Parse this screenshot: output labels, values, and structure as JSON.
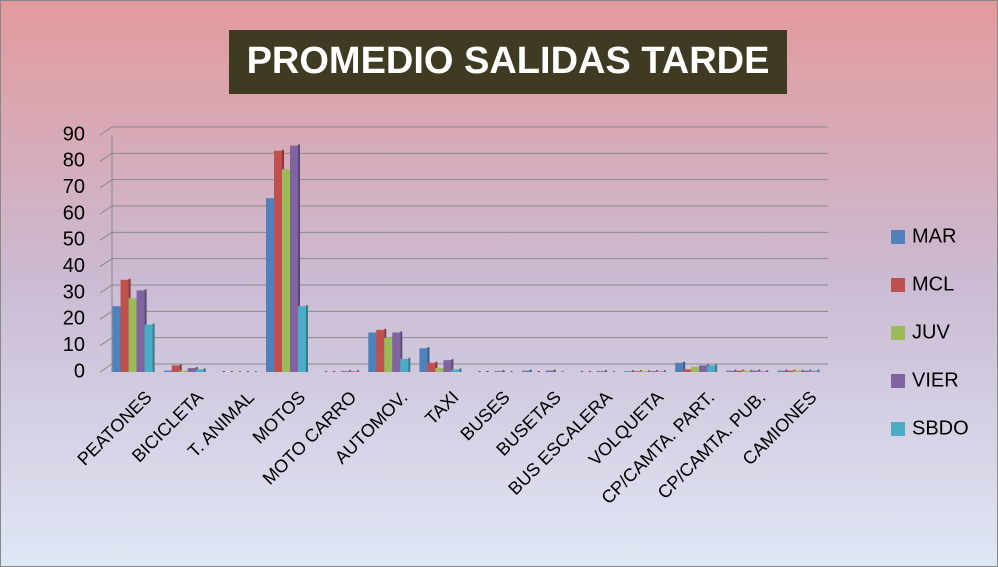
{
  "chart_data": {
    "type": "bar",
    "title": "PROMEDIO SALIDAS TARDE",
    "categories": [
      "PEATONES",
      "BICICLETA",
      "T. ANIMAL",
      "MOTOS",
      "MOTO CARRO",
      "AUTOMOV.",
      "TAXI",
      "BUSES",
      "BUSETAS",
      "BUS ESCALERA",
      "VOLQUETA",
      "CP/CAMTA. PART.",
      "CP/CAMTA. PUB.",
      "CAMIONES"
    ],
    "series": [
      {
        "name": "MAR",
        "color": "#4f81bd",
        "values": [
          25,
          0.5,
          0,
          66,
          0,
          15,
          9,
          0,
          0.5,
          0,
          0.3,
          3.5,
          0.5,
          0.5
        ]
      },
      {
        "name": "MCL",
        "color": "#c0504d",
        "values": [
          35,
          2.5,
          0,
          84,
          0,
          16,
          3.5,
          0,
          0,
          0,
          0.3,
          1,
          0.5,
          0.5
        ]
      },
      {
        "name": "JUV",
        "color": "#9bbb59",
        "values": [
          28,
          0.5,
          0,
          77,
          0,
          13,
          1.5,
          0,
          0,
          0,
          0.3,
          2,
          0.5,
          0.5
        ]
      },
      {
        "name": "VIER",
        "color": "#8064a2",
        "values": [
          31,
          1.5,
          0,
          86,
          0.3,
          15,
          4.5,
          0.3,
          0.5,
          0.3,
          0.3,
          2.5,
          0.5,
          0.5
        ]
      },
      {
        "name": "SBDO",
        "color": "#4bacc6",
        "values": [
          18,
          1,
          0,
          25,
          0.3,
          5,
          1,
          0,
          0,
          0,
          0.3,
          2.5,
          0.3,
          0.5
        ]
      }
    ],
    "ylim": [
      0,
      90
    ],
    "yticks": [
      0,
      10,
      20,
      30,
      40,
      50,
      60,
      70,
      80,
      90
    ],
    "grid": true,
    "legend": "right"
  }
}
